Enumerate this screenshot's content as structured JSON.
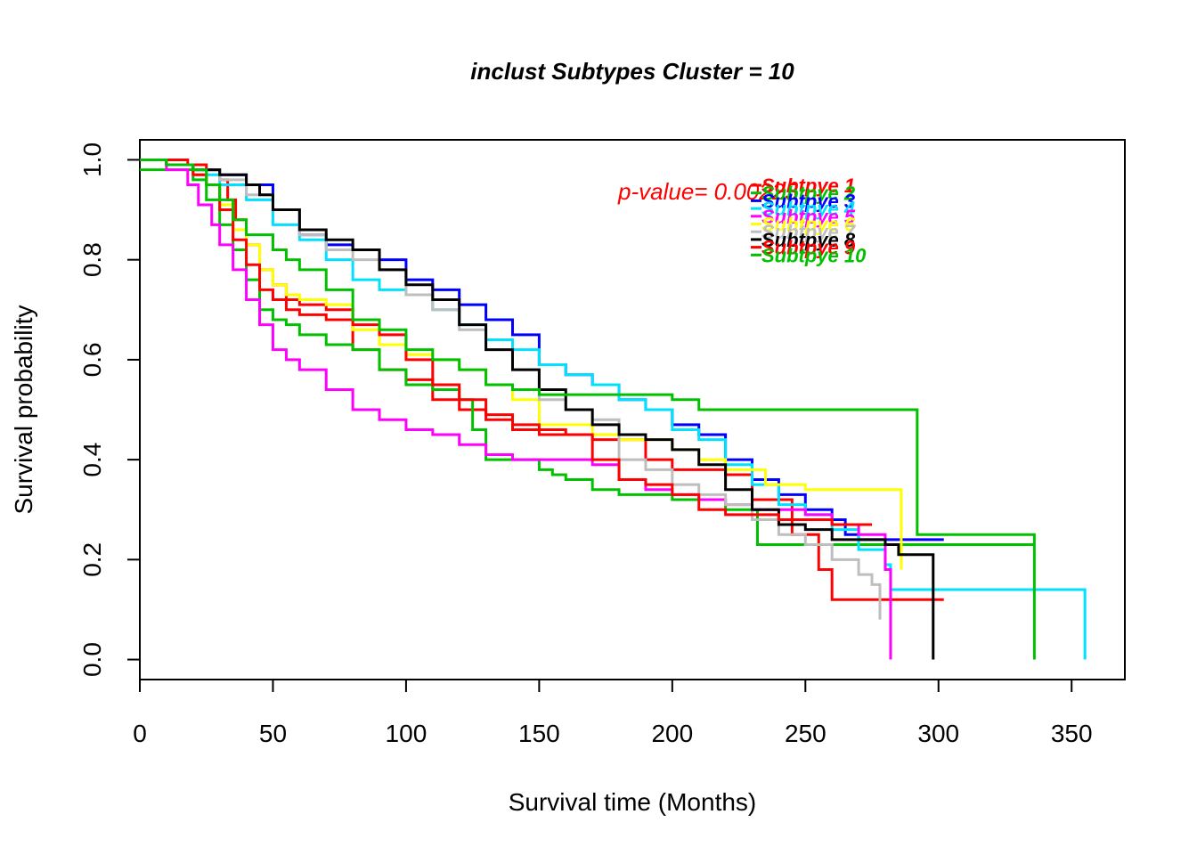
{
  "chart_data": {
    "type": "line",
    "title": "inclust Subtypes Cluster = 10",
    "xlabel": "Survival time (Months)",
    "ylabel": "Survival probability",
    "xlim": [
      0,
      370
    ],
    "ylim": [
      -0.04,
      1.04
    ],
    "x_ticks": [
      0,
      50,
      100,
      150,
      200,
      250,
      300,
      350
    ],
    "y_ticks": [
      0.0,
      0.2,
      0.4,
      0.6,
      0.8,
      1.0
    ],
    "x_tick_labels": [
      "0",
      "50",
      "100",
      "150",
      "200",
      "250",
      "300",
      "350"
    ],
    "y_tick_labels": [
      "0.0",
      "0.2",
      "0.4",
      "0.6",
      "0.8",
      "1.0"
    ],
    "annotation": {
      "text": "p-value= 0.00225",
      "color": "#ff0000"
    },
    "legend": {
      "placement": "top-right"
    },
    "grid": false,
    "series": [
      {
        "name": "Subtpye 1",
        "color": "#ff0000",
        "points": [
          [
            0,
            1
          ],
          [
            10,
            1
          ],
          [
            18,
            0.99
          ],
          [
            25,
            0.98
          ],
          [
            30,
            0.96
          ],
          [
            33,
            0.92
          ],
          [
            36,
            0.88
          ],
          [
            40,
            0.83
          ],
          [
            45,
            0.78
          ],
          [
            50,
            0.75
          ],
          [
            55,
            0.72
          ],
          [
            60,
            0.71
          ],
          [
            70,
            0.7
          ],
          [
            80,
            0.62
          ],
          [
            90,
            0.58
          ],
          [
            100,
            0.56
          ],
          [
            110,
            0.52
          ],
          [
            120,
            0.5
          ],
          [
            130,
            0.48
          ],
          [
            140,
            0.46
          ],
          [
            150,
            0.45
          ],
          [
            170,
            0.44
          ],
          [
            190,
            0.4
          ],
          [
            200,
            0.38
          ],
          [
            220,
            0.37
          ],
          [
            230,
            0.32
          ],
          [
            245,
            0.25
          ],
          [
            255,
            0.18
          ],
          [
            260,
            0.12
          ],
          [
            302,
            0.12
          ]
        ]
      },
      {
        "name": "Subtpye 2",
        "color": "#00c000",
        "points": [
          [
            0,
            0.98
          ],
          [
            10,
            0.98
          ],
          [
            20,
            0.96
          ],
          [
            25,
            0.92
          ],
          [
            30,
            0.87
          ],
          [
            35,
            0.82
          ],
          [
            40,
            0.76
          ],
          [
            45,
            0.7
          ],
          [
            50,
            0.68
          ],
          [
            55,
            0.67
          ],
          [
            60,
            0.65
          ],
          [
            70,
            0.63
          ],
          [
            80,
            0.62
          ],
          [
            90,
            0.58
          ],
          [
            100,
            0.55
          ],
          [
            110,
            0.54
          ],
          [
            120,
            0.52
          ],
          [
            125,
            0.46
          ],
          [
            130,
            0.4
          ],
          [
            140,
            0.4
          ],
          [
            150,
            0.38
          ],
          [
            155,
            0.37
          ],
          [
            160,
            0.36
          ],
          [
            170,
            0.34
          ],
          [
            180,
            0.33
          ],
          [
            200,
            0.32
          ],
          [
            220,
            0.3
          ],
          [
            232,
            0.23
          ],
          [
            336,
            0.23
          ]
        ]
      },
      {
        "name": "Subtpye 3",
        "color": "#0000ff",
        "points": [
          [
            0,
            1
          ],
          [
            10,
            0.99
          ],
          [
            20,
            0.98
          ],
          [
            30,
            0.97
          ],
          [
            40,
            0.95
          ],
          [
            50,
            0.9
          ],
          [
            60,
            0.85
          ],
          [
            70,
            0.83
          ],
          [
            80,
            0.82
          ],
          [
            90,
            0.8
          ],
          [
            100,
            0.76
          ],
          [
            110,
            0.74
          ],
          [
            120,
            0.71
          ],
          [
            130,
            0.68
          ],
          [
            140,
            0.65
          ],
          [
            150,
            0.59
          ],
          [
            160,
            0.57
          ],
          [
            170,
            0.55
          ],
          [
            180,
            0.52
          ],
          [
            190,
            0.5
          ],
          [
            200,
            0.47
          ],
          [
            210,
            0.45
          ],
          [
            220,
            0.4
          ],
          [
            230,
            0.36
          ],
          [
            240,
            0.33
          ],
          [
            250,
            0.3
          ],
          [
            260,
            0.28
          ],
          [
            265,
            0.25
          ],
          [
            270,
            0.24
          ],
          [
            302,
            0.24
          ]
        ]
      },
      {
        "name": "Subtpye 4",
        "color": "#00e0ff",
        "points": [
          [
            0,
            1
          ],
          [
            10,
            0.99
          ],
          [
            20,
            0.97
          ],
          [
            30,
            0.95
          ],
          [
            40,
            0.92
          ],
          [
            50,
            0.87
          ],
          [
            60,
            0.84
          ],
          [
            70,
            0.8
          ],
          [
            80,
            0.76
          ],
          [
            90,
            0.74
          ],
          [
            100,
            0.73
          ],
          [
            110,
            0.7
          ],
          [
            120,
            0.67
          ],
          [
            130,
            0.64
          ],
          [
            140,
            0.62
          ],
          [
            150,
            0.59
          ],
          [
            160,
            0.57
          ],
          [
            170,
            0.55
          ],
          [
            180,
            0.52
          ],
          [
            190,
            0.5
          ],
          [
            200,
            0.46
          ],
          [
            210,
            0.44
          ],
          [
            220,
            0.39
          ],
          [
            230,
            0.35
          ],
          [
            240,
            0.31
          ],
          [
            250,
            0.29
          ],
          [
            260,
            0.26
          ],
          [
            270,
            0.22
          ],
          [
            280,
            0.19
          ],
          [
            282,
            0.14
          ],
          [
            355,
            0.14
          ],
          [
            355,
            0.0
          ]
        ]
      },
      {
        "name": "Subtpye 5",
        "color": "#ff00ff",
        "points": [
          [
            0,
            1
          ],
          [
            10,
            0.98
          ],
          [
            18,
            0.95
          ],
          [
            22,
            0.91
          ],
          [
            27,
            0.87
          ],
          [
            30,
            0.83
          ],
          [
            35,
            0.78
          ],
          [
            40,
            0.72
          ],
          [
            45,
            0.67
          ],
          [
            50,
            0.62
          ],
          [
            55,
            0.6
          ],
          [
            60,
            0.58
          ],
          [
            70,
            0.54
          ],
          [
            80,
            0.5
          ],
          [
            90,
            0.48
          ],
          [
            100,
            0.46
          ],
          [
            110,
            0.45
          ],
          [
            120,
            0.43
          ],
          [
            130,
            0.41
          ],
          [
            140,
            0.4
          ],
          [
            150,
            0.4
          ],
          [
            170,
            0.39
          ],
          [
            180,
            0.36
          ],
          [
            190,
            0.34
          ],
          [
            200,
            0.33
          ],
          [
            210,
            0.32
          ],
          [
            220,
            0.31
          ],
          [
            230,
            0.3
          ],
          [
            250,
            0.29
          ],
          [
            260,
            0.27
          ],
          [
            270,
            0.25
          ],
          [
            280,
            0.18
          ],
          [
            282,
            0.17
          ],
          [
            282,
            0.0
          ]
        ]
      },
      {
        "name": "Subtpye 6",
        "color": "#ffff00",
        "points": [
          [
            0,
            1
          ],
          [
            10,
            0.99
          ],
          [
            20,
            0.97
          ],
          [
            25,
            0.95
          ],
          [
            30,
            0.91
          ],
          [
            35,
            0.86
          ],
          [
            40,
            0.83
          ],
          [
            45,
            0.78
          ],
          [
            50,
            0.75
          ],
          [
            55,
            0.73
          ],
          [
            60,
            0.72
          ],
          [
            70,
            0.71
          ],
          [
            80,
            0.66
          ],
          [
            90,
            0.63
          ],
          [
            100,
            0.61
          ],
          [
            110,
            0.6
          ],
          [
            120,
            0.58
          ],
          [
            130,
            0.55
          ],
          [
            140,
            0.52
          ],
          [
            150,
            0.47
          ],
          [
            170,
            0.45
          ],
          [
            180,
            0.44
          ],
          [
            200,
            0.42
          ],
          [
            210,
            0.4
          ],
          [
            220,
            0.38
          ],
          [
            235,
            0.35
          ],
          [
            250,
            0.34
          ],
          [
            270,
            0.34
          ],
          [
            285,
            0.34
          ],
          [
            286,
            0.18
          ]
        ]
      },
      {
        "name": "Subtpye 7",
        "color": "#bebebe",
        "points": [
          [
            0,
            1
          ],
          [
            10,
            0.99
          ],
          [
            20,
            0.98
          ],
          [
            30,
            0.96
          ],
          [
            40,
            0.93
          ],
          [
            50,
            0.9
          ],
          [
            60,
            0.85
          ],
          [
            70,
            0.82
          ],
          [
            80,
            0.8
          ],
          [
            90,
            0.78
          ],
          [
            100,
            0.73
          ],
          [
            110,
            0.7
          ],
          [
            120,
            0.66
          ],
          [
            130,
            0.62
          ],
          [
            140,
            0.58
          ],
          [
            150,
            0.52
          ],
          [
            160,
            0.5
          ],
          [
            170,
            0.48
          ],
          [
            180,
            0.4
          ],
          [
            190,
            0.38
          ],
          [
            200,
            0.35
          ],
          [
            210,
            0.33
          ],
          [
            220,
            0.31
          ],
          [
            230,
            0.28
          ],
          [
            240,
            0.25
          ],
          [
            250,
            0.23
          ],
          [
            260,
            0.2
          ],
          [
            270,
            0.17
          ],
          [
            275,
            0.15
          ],
          [
            278,
            0.08
          ]
        ]
      },
      {
        "name": "Subtpye 8",
        "color": "#000000",
        "points": [
          [
            0,
            1
          ],
          [
            10,
            0.99
          ],
          [
            20,
            0.98
          ],
          [
            30,
            0.97
          ],
          [
            40,
            0.95
          ],
          [
            45,
            0.93
          ],
          [
            50,
            0.9
          ],
          [
            60,
            0.86
          ],
          [
            70,
            0.84
          ],
          [
            80,
            0.82
          ],
          [
            90,
            0.78
          ],
          [
            100,
            0.75
          ],
          [
            110,
            0.72
          ],
          [
            120,
            0.67
          ],
          [
            130,
            0.62
          ],
          [
            140,
            0.58
          ],
          [
            150,
            0.54
          ],
          [
            160,
            0.5
          ],
          [
            170,
            0.47
          ],
          [
            180,
            0.45
          ],
          [
            190,
            0.44
          ],
          [
            200,
            0.42
          ],
          [
            210,
            0.39
          ],
          [
            220,
            0.34
          ],
          [
            230,
            0.3
          ],
          [
            240,
            0.27
          ],
          [
            250,
            0.26
          ],
          [
            260,
            0.24
          ],
          [
            280,
            0.23
          ],
          [
            285,
            0.21
          ],
          [
            298,
            0.2
          ],
          [
            298,
            0.0
          ]
        ]
      },
      {
        "name": "Subtpye 9",
        "color": "#ff0000",
        "points": [
          [
            0,
            1
          ],
          [
            10,
            0.99
          ],
          [
            20,
            0.97
          ],
          [
            25,
            0.95
          ],
          [
            30,
            0.9
          ],
          [
            35,
            0.84
          ],
          [
            40,
            0.79
          ],
          [
            45,
            0.74
          ],
          [
            50,
            0.72
          ],
          [
            55,
            0.7
          ],
          [
            60,
            0.69
          ],
          [
            70,
            0.68
          ],
          [
            80,
            0.67
          ],
          [
            90,
            0.65
          ],
          [
            100,
            0.6
          ],
          [
            110,
            0.55
          ],
          [
            120,
            0.52
          ],
          [
            130,
            0.49
          ],
          [
            140,
            0.47
          ],
          [
            150,
            0.46
          ],
          [
            160,
            0.45
          ],
          [
            170,
            0.4
          ],
          [
            180,
            0.36
          ],
          [
            190,
            0.35
          ],
          [
            200,
            0.33
          ],
          [
            210,
            0.3
          ],
          [
            220,
            0.29
          ],
          [
            230,
            0.29
          ],
          [
            240,
            0.28
          ],
          [
            250,
            0.28
          ],
          [
            260,
            0.27
          ],
          [
            275,
            0.27
          ]
        ]
      },
      {
        "name": "Subtpye 10",
        "color": "#00c000",
        "points": [
          [
            0,
            1
          ],
          [
            10,
            0.99
          ],
          [
            20,
            0.98
          ],
          [
            25,
            0.95
          ],
          [
            30,
            0.92
          ],
          [
            35,
            0.88
          ],
          [
            40,
            0.85
          ],
          [
            50,
            0.82
          ],
          [
            55,
            0.8
          ],
          [
            60,
            0.78
          ],
          [
            70,
            0.74
          ],
          [
            80,
            0.68
          ],
          [
            90,
            0.66
          ],
          [
            100,
            0.62
          ],
          [
            110,
            0.6
          ],
          [
            120,
            0.58
          ],
          [
            130,
            0.55
          ],
          [
            140,
            0.54
          ],
          [
            150,
            0.53
          ],
          [
            170,
            0.53
          ],
          [
            180,
            0.53
          ],
          [
            200,
            0.52
          ],
          [
            210,
            0.5
          ],
          [
            220,
            0.5
          ],
          [
            240,
            0.5
          ],
          [
            260,
            0.5
          ],
          [
            280,
            0.5
          ],
          [
            292,
            0.5
          ],
          [
            292,
            0.25
          ],
          [
            336,
            0.25
          ],
          [
            336,
            0.0
          ]
        ]
      }
    ]
  }
}
